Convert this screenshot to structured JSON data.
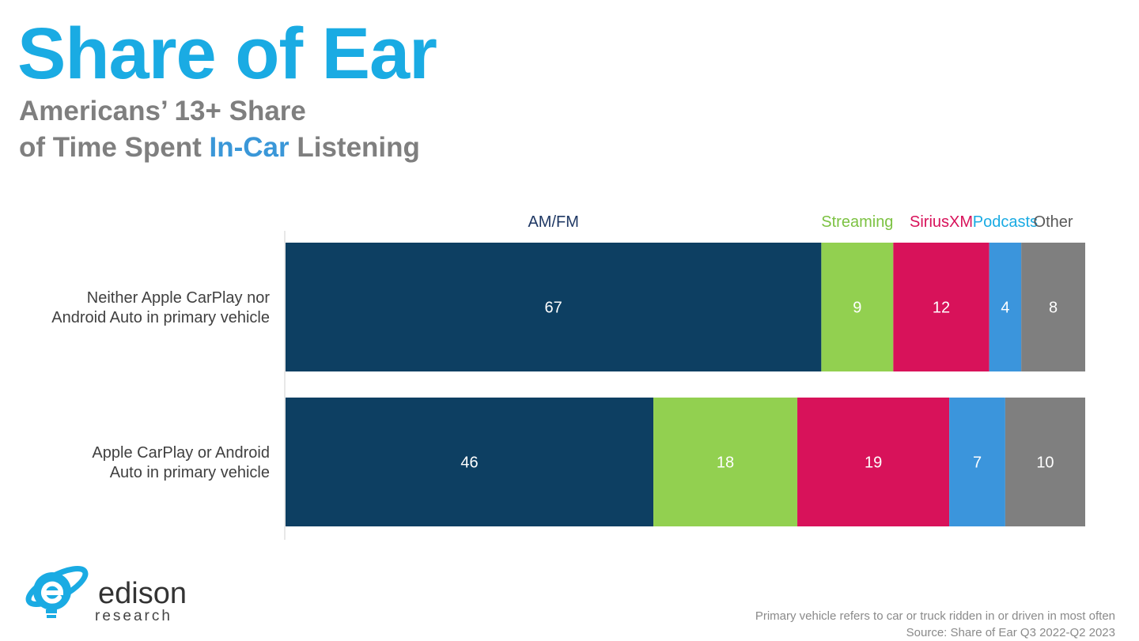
{
  "title": "Share of Ear",
  "subtitle": {
    "line1": "Americans’ 13+ Share",
    "line2_prefix": "of Time Spent ",
    "line2_highlight": "In-Car",
    "line2_suffix": " Listening"
  },
  "colors": {
    "title": "#1aabe3",
    "subtitle": "#7f7f7f",
    "highlight": "#3a97d8"
  },
  "chart_data": {
    "type": "bar",
    "orientation": "horizontal",
    "stacked": true,
    "categories": [
      [
        "Neither Apple CarPlay nor",
        "Android Auto in primary vehicle"
      ],
      [
        "Apple CarPlay or Android",
        "Auto in primary vehicle"
      ]
    ],
    "series": [
      {
        "name": "AM/FM",
        "color": "#0d3f62",
        "legend_color": "#1f3864",
        "values": [
          67,
          46
        ]
      },
      {
        "name": "Streaming",
        "color": "#92d050",
        "legend_color": "#7cc242",
        "values": [
          9,
          18
        ]
      },
      {
        "name": "SiriusXM",
        "color": "#d8125a",
        "legend_color": "#d8125a",
        "values": [
          12,
          19
        ]
      },
      {
        "name": "Podcasts",
        "color": "#3b95dc",
        "legend_color": "#1aabe3",
        "values": [
          4,
          7
        ]
      },
      {
        "name": "Other",
        "color": "#7f7f7f",
        "legend_color": "#595959",
        "values": [
          8,
          10
        ]
      }
    ],
    "xlim": [
      0,
      100
    ],
    "legend_position": "top",
    "grid": false
  },
  "logo": {
    "word": "edison",
    "sub": "research"
  },
  "footnote": {
    "line1": "Primary vehicle refers to car or truck ridden in or driven in most often",
    "line2": "Source: Share of Ear Q3 2022-Q2 2023"
  }
}
